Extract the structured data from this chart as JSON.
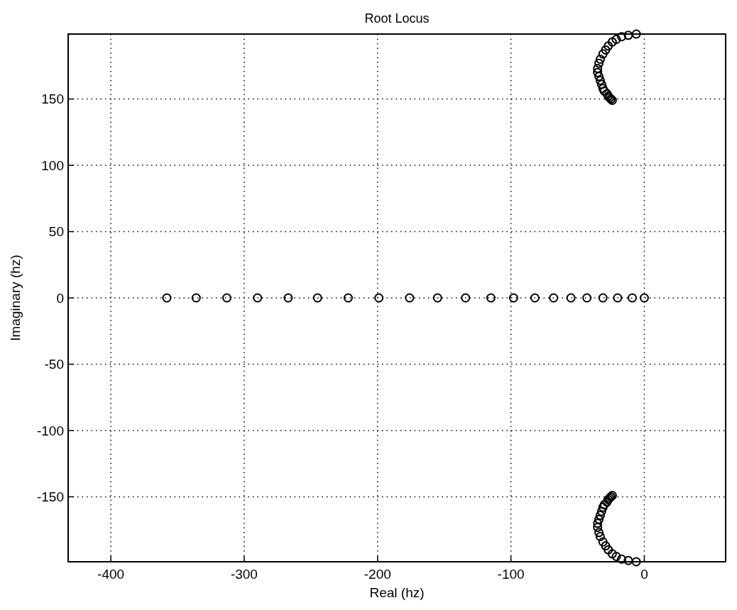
{
  "chart_data": {
    "type": "scatter",
    "title": "Root Locus",
    "xlabel": "Real (hz)",
    "ylabel": "Imaginary (hz)",
    "xlim": [
      -432,
      61
    ],
    "ylim": [
      -199,
      199
    ],
    "xticks": [
      -400,
      -300,
      -200,
      -100,
      0
    ],
    "yticks": [
      -150,
      -100,
      -50,
      0,
      50,
      100,
      150
    ],
    "grid": true,
    "marker": "circle",
    "series": [
      {
        "color": "#000000",
        "x": [
          -358,
          -336,
          -313,
          -290,
          -267,
          -245,
          -222,
          -199,
          -176,
          -155,
          -134,
          -115,
          -98,
          -82,
          -68,
          -55,
          -43,
          -31,
          -20,
          -9,
          0
        ],
        "values": [
          0,
          0,
          0,
          0,
          0,
          0,
          0,
          0,
          0,
          0,
          0,
          0,
          0,
          0,
          0,
          0,
          0,
          0,
          0,
          0,
          0
        ]
      },
      {
        "color": "#000000",
        "x": [
          -24,
          -25,
          -26,
          -27,
          -28,
          -30,
          -31,
          -32,
          -33,
          -34,
          -35,
          -35,
          -34,
          -33,
          -31,
          -29,
          -27,
          -24,
          -21,
          -17,
          -12,
          -6
        ],
        "values": [
          149,
          150,
          151,
          152,
          154,
          156,
          158,
          161,
          164,
          167,
          170,
          173,
          177,
          180,
          184,
          187,
          190,
          193,
          195,
          197,
          198,
          199
        ]
      },
      {
        "color": "#000000",
        "x": [
          -24,
          -25,
          -26,
          -27,
          -28,
          -30,
          -31,
          -32,
          -33,
          -34,
          -35,
          -35,
          -34,
          -33,
          -31,
          -29,
          -27,
          -24,
          -21,
          -17,
          -12,
          -6
        ],
        "values": [
          -149,
          -150,
          -151,
          -152,
          -154,
          -156,
          -158,
          -161,
          -164,
          -167,
          -170,
          -173,
          -177,
          -180,
          -184,
          -187,
          -190,
          -193,
          -195,
          -197,
          -198,
          -199
        ]
      }
    ]
  }
}
